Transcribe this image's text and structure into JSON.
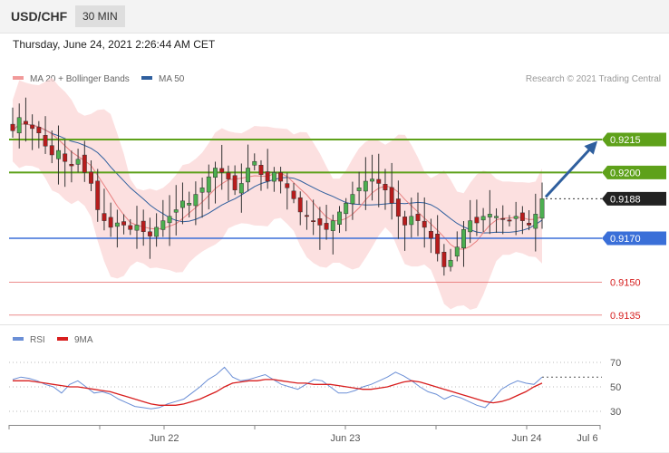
{
  "header": {
    "pair": "USD/CHF",
    "timeframe": "30 MIN"
  },
  "datetime": "Thursday, June 24, 2021 2:26:44 AM CET",
  "legend": {
    "ma20": "MA 20 + Bollinger Bands",
    "ma50": "MA 50",
    "credit": "Research © 2021 Trading Central"
  },
  "rsi_legend": {
    "rsi": "RSI",
    "ma9": "9MA"
  },
  "colors": {
    "resistance": "#5ea11a",
    "support": "#3a6fd8",
    "target_low": "#e45c5c",
    "bands": "#fbd6d6",
    "ma50": "#2f5f9e",
    "ma20": "#e88080",
    "arrow": "#2f5f9e",
    "candle": "#333333",
    "rsi": "#6b8fd6",
    "rsi_ma": "#d81e1e"
  },
  "chart_data": [
    {
      "type": "candlestick",
      "title": "USD/CHF 30 MIN",
      "ylim": [
        0.913,
        0.9235
      ],
      "x_ticks": [
        "Jun 22",
        "Jun 23",
        "Jun 24",
        "Jul 6"
      ],
      "levels": [
        {
          "value": 0.9215,
          "label": "0.9215",
          "kind": "resistance"
        },
        {
          "value": 0.92,
          "label": "0.9200",
          "kind": "resistance"
        },
        {
          "value": 0.9188,
          "label": "0.9188",
          "kind": "current"
        },
        {
          "value": 0.917,
          "label": "0.9170",
          "kind": "support"
        },
        {
          "value": 0.915,
          "label": "0.9150",
          "kind": "target"
        },
        {
          "value": 0.9135,
          "label": "0.9135",
          "kind": "target"
        }
      ],
      "close_path": [
        0.9219,
        0.9225,
        0.9222,
        0.922,
        0.9218,
        0.9212,
        0.9208,
        0.921,
        0.9205,
        0.9203,
        0.9206,
        0.92,
        0.9195,
        0.9183,
        0.9178,
        0.9175,
        0.9177,
        0.9176,
        0.9174,
        0.9176,
        0.9173,
        0.9171,
        0.9175,
        0.9178,
        0.918,
        0.9183,
        0.9187,
        0.9186,
        0.919,
        0.9193,
        0.9198,
        0.9202,
        0.92,
        0.9197,
        0.9192,
        0.9195,
        0.9202,
        0.9205,
        0.9199,
        0.9196,
        0.92,
        0.9196,
        0.9193,
        0.9188,
        0.9182,
        0.918,
        0.9178,
        0.9176,
        0.9174,
        0.9178,
        0.9182,
        0.9186,
        0.919,
        0.9193,
        0.9196,
        0.9197,
        0.9195,
        0.9192,
        0.9186,
        0.918,
        0.9176,
        0.918,
        0.9178,
        0.9175,
        0.917,
        0.9163,
        0.9157,
        0.916,
        0.9166,
        0.9174,
        0.9178,
        0.9177,
        0.918,
        0.9181,
        0.918,
        0.9179,
        0.9178,
        0.918,
        0.9178,
        0.9176,
        0.9181,
        0.9188
      ]
    },
    {
      "type": "line",
      "title": "RSI",
      "ylim": [
        22,
        78
      ],
      "y_ticks": [
        70,
        50,
        30
      ],
      "series": [
        {
          "name": "RSI",
          "values": [
            56,
            58,
            57,
            55,
            52,
            50,
            45,
            52,
            55,
            50,
            45,
            46,
            44,
            40,
            37,
            34,
            33,
            32,
            33,
            36,
            38,
            40,
            45,
            50,
            56,
            60,
            66,
            58,
            55,
            56,
            58,
            60,
            56,
            52,
            50,
            48,
            52,
            56,
            55,
            50,
            45,
            45,
            47,
            50,
            52,
            55,
            58,
            62,
            59,
            55,
            50,
            46,
            44,
            40,
            43,
            41,
            38,
            35,
            33,
            40,
            48,
            52,
            55,
            53,
            52,
            58
          ]
        },
        {
          "name": "9MA",
          "values": [
            55,
            55,
            55,
            54,
            53,
            52,
            51,
            50,
            50,
            49,
            48,
            47,
            46,
            44,
            42,
            40,
            38,
            36,
            35,
            35,
            35,
            36,
            38,
            40,
            43,
            46,
            50,
            53,
            54,
            55,
            55,
            56,
            56,
            55,
            54,
            53,
            53,
            52,
            52,
            52,
            51,
            50,
            49,
            48,
            48,
            49,
            50,
            52,
            54,
            55,
            54,
            52,
            50,
            48,
            46,
            44,
            42,
            40,
            38,
            37,
            38,
            40,
            43,
            46,
            50,
            53
          ]
        }
      ]
    }
  ]
}
